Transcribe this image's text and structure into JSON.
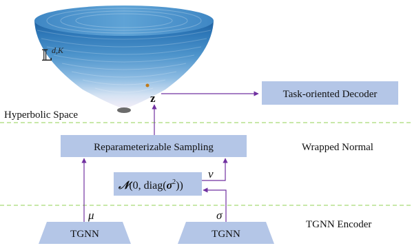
{
  "space_symbol": "𝕃",
  "space_sup": "d,K",
  "point_label": "z",
  "decoder_label": "Task-oriented Decoder",
  "hyperbolic_label": "Hyperbolic Space",
  "sampling_label": "Reparameterizable Sampling",
  "wrapped_label": "Wrapped Normal",
  "normal_prefix": "𝒩",
  "normal_open": "(0, diag(",
  "normal_sigma": "σ",
  "normal_sq": "2",
  "normal_close": "))",
  "v_label": "v",
  "mu_label": "μ",
  "sigma_label": "σ",
  "tgnn_left_label": "TGNN",
  "tgnn_right_label": "TGNN",
  "encoder_label": "TGNN Encoder",
  "colors": {
    "box_fill": "#b4c6e7",
    "arrow": "#7030a0",
    "dash": "#92d050",
    "cone_top": "#2e75b6",
    "cone_bottom": "#f4eef8"
  }
}
